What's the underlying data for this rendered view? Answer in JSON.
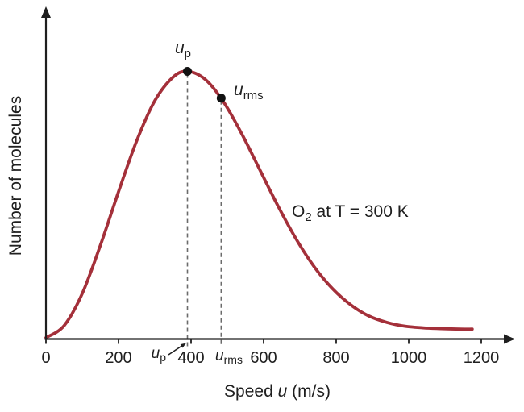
{
  "figure": {
    "ylabel": "Number of molecules",
    "xlabel_parts": {
      "pre": "Speed ",
      "variable": "u",
      "post": " (m/s)"
    },
    "annotation_parts": {
      "base": "O",
      "sub": "2",
      "rest": " at T = 300 K"
    },
    "colors": {
      "curve": "#a4303a",
      "axis": "#1f1f1f",
      "text": "#1f1f1f",
      "dash": "#6b6b6b",
      "dot": "#111111"
    }
  },
  "chart_data": {
    "type": "line",
    "title": "",
    "xlabel": "Speed u (m/s)",
    "ylabel": "Number of molecules",
    "annotation": "O2 at T = 300 K",
    "grid": false,
    "legend_position": "none",
    "xlim": [
      0,
      1400
    ],
    "ylim": [
      0,
      1.15
    ],
    "x_ticks": [
      0,
      200,
      400,
      600,
      800,
      1000,
      1200
    ],
    "x_tick_labels": [
      "0",
      "200",
      "400",
      "600",
      "800",
      "1000",
      "1200"
    ],
    "y_ticks": [],
    "series": [
      {
        "name": "O2 at T = 300 K",
        "x": [
          0,
          50,
          100,
          150,
          200,
          250,
          300,
          350,
          390,
          440,
          490,
          540,
          590,
          640,
          690,
          740,
          790,
          840,
          890,
          940,
          990,
          1040,
          1090,
          1140,
          1175
        ],
        "y": [
          0.005,
          0.05,
          0.17,
          0.35,
          0.55,
          0.74,
          0.89,
          0.978,
          1.0,
          0.969,
          0.885,
          0.766,
          0.631,
          0.496,
          0.373,
          0.269,
          0.188,
          0.128,
          0.086,
          0.062,
          0.048,
          0.042,
          0.039,
          0.037,
          0.037
        ]
      }
    ],
    "markers": [
      {
        "id": "u_p",
        "description": "most probable speed",
        "label_base": "u",
        "label_sub": "p",
        "x": 390,
        "y": 1.0
      },
      {
        "id": "u_rms",
        "description": "root mean square speed",
        "label_base": "u",
        "label_sub": "rms",
        "x": 483,
        "y": 0.9
      }
    ]
  }
}
